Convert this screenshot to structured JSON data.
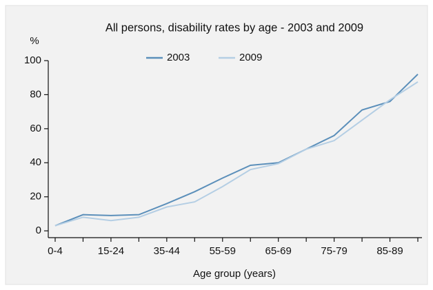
{
  "chart_data": {
    "type": "line",
    "title": "All persons, disability rates by age - 2003 and 2009",
    "y_label": "%",
    "x_label": "Age group (years)",
    "categories": [
      "0-4",
      null,
      "15-24",
      null,
      "35-44",
      null,
      "55-59",
      null,
      "65-69",
      null,
      "75-79",
      null,
      "85-89",
      null
    ],
    "series": [
      {
        "name": "2003",
        "color": "#5b8fba",
        "values": [
          3,
          9.5,
          9,
          9.5,
          16,
          23,
          31,
          38.5,
          40,
          48,
          56,
          71,
          76,
          92
        ]
      },
      {
        "name": "2009",
        "color": "#b4cee4",
        "values": [
          3,
          8,
          6,
          8,
          14,
          17,
          26,
          36,
          39.5,
          48,
          53,
          65,
          77,
          87.5
        ]
      }
    ],
    "ylim": [
      -4,
      100
    ],
    "yticks": [
      0,
      20,
      40,
      60,
      80,
      100
    ],
    "legend": "top"
  }
}
